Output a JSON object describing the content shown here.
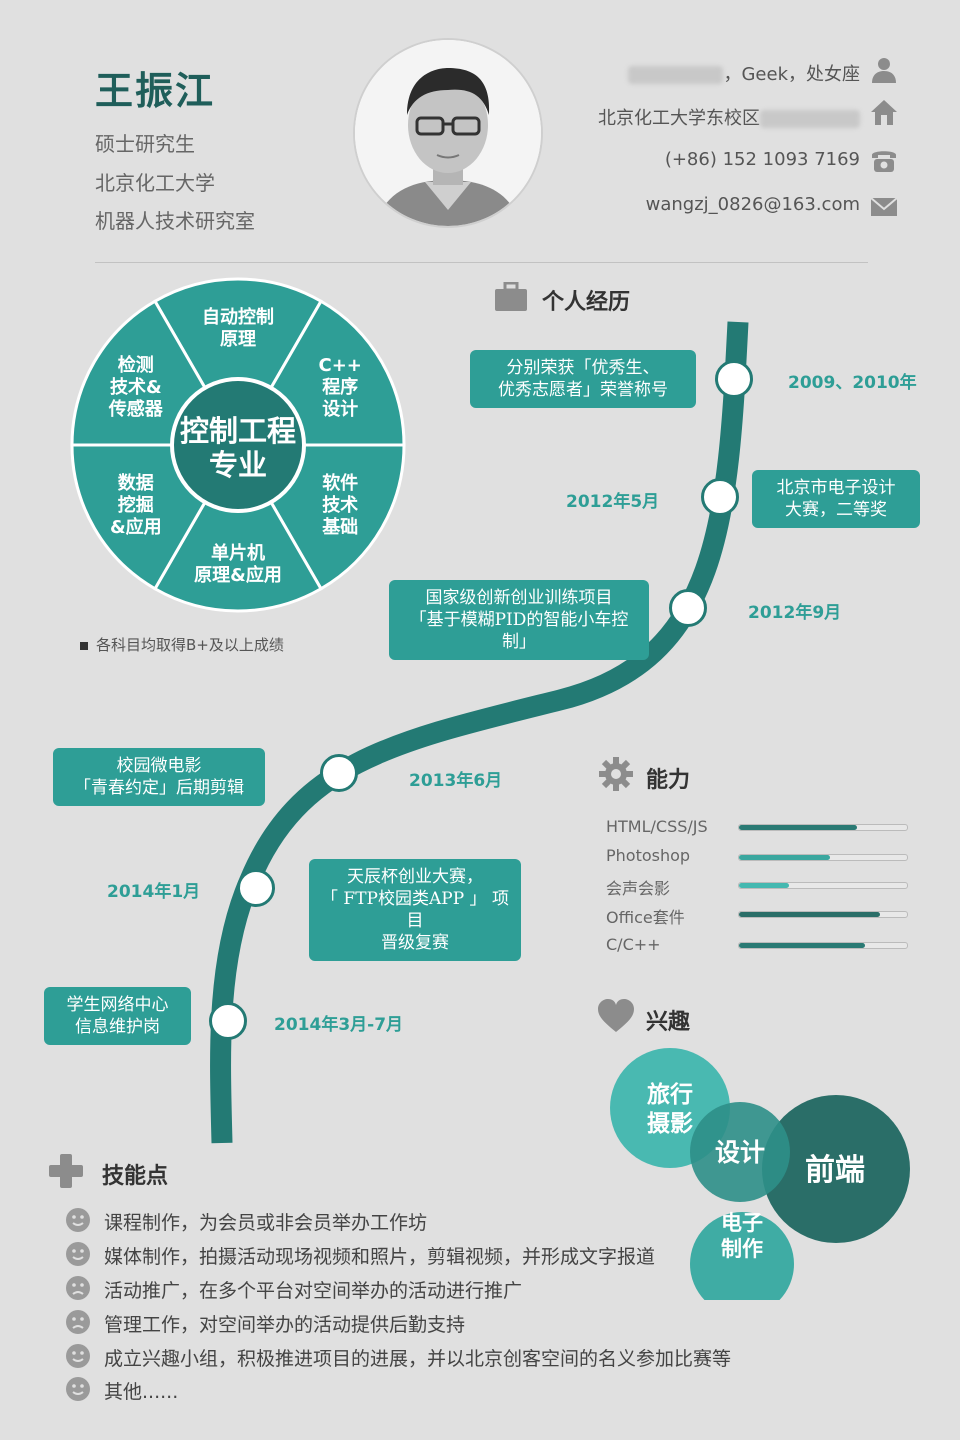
{
  "header": {
    "name": "王振江",
    "degree": "硕士研究生",
    "school": "北京化工大学",
    "lab": "机器人技术研究室",
    "contact": {
      "birth_suffix": "，Geek，处女座",
      "address": "北京化工大学东校区",
      "phone": "(+86) 152 1093 7169",
      "email": "wangzj_0826@163.com"
    }
  },
  "major": {
    "center": [
      "控制工程",
      "专业"
    ],
    "segments": [
      [
        "自动控制",
        "原理"
      ],
      [
        "C++",
        "程序",
        "设计"
      ],
      [
        "软件",
        "技术",
        "基础"
      ],
      [
        "单片机",
        "原理&应用"
      ],
      [
        "数据",
        "挖掘",
        "&应用"
      ],
      [
        "检测",
        "技术&",
        "传感器"
      ]
    ],
    "note": "各科目均取得B+及以上成绩",
    "colors": {
      "fill": "#2e9e96",
      "center": "#237a74",
      "border": "#ffffff"
    }
  },
  "experience": {
    "title": "个人经历",
    "items": [
      {
        "date": "2009、2010年",
        "text": [
          "分别荣获「优秀生、",
          "优秀志愿者」荣誉称号"
        ]
      },
      {
        "date": "2012年5月",
        "text": [
          "北京市电子设计",
          "大赛，二等奖"
        ]
      },
      {
        "date": "2012年9月",
        "text": [
          "国家级创新创业训练项目",
          "「基于模糊PID的智能小车控制」"
        ]
      },
      {
        "date": "2013年6月",
        "text": [
          "校园微电影",
          "「青春约定」后期剪辑"
        ]
      },
      {
        "date": "2014年1月",
        "text": [
          "天辰杯创业大赛，",
          "「 FTP校园类APP 」 项目",
          "晋级复赛"
        ]
      },
      {
        "date": "2014年3月-7月",
        "text": [
          "学生网络中心",
          "信息维护岗"
        ]
      }
    ]
  },
  "abilities": {
    "title": "能力",
    "items": [
      {
        "label": "HTML/CSS/JS",
        "level": 0.7,
        "color": "#2a7a74"
      },
      {
        "label": "Photoshop",
        "level": 0.54,
        "color": "#3aa79f"
      },
      {
        "label": "会声会影",
        "level": 0.3,
        "color": "#44b8b0"
      },
      {
        "label": "Office套件",
        "level": 0.84,
        "color": "#2a6e68"
      },
      {
        "label": "C/C++",
        "level": 0.75,
        "color": "#2a7a74"
      }
    ]
  },
  "interests": {
    "title": "兴趣",
    "items": [
      {
        "label": [
          "旅行",
          "摄影"
        ],
        "color": "#44b8b0"
      },
      {
        "label": [
          "设计"
        ],
        "color": "#2e8f88"
      },
      {
        "label": [
          "前端"
        ],
        "color": "#2a6e68"
      },
      {
        "label": [
          "电子",
          "制作"
        ],
        "color": "#36a9a0"
      }
    ]
  },
  "skills": {
    "title": "技能点",
    "items": [
      "课程制作，为会员或非会员举办工作坊",
      "媒体制作，拍摄活动现场视频和照片，剪辑视频，并形成文字报道",
      "活动推广，在多个平台对空间举办的活动进行推广",
      "管理工作，对空间举办的活动提供后勤支持",
      "成立兴趣小组，积极推进项目的进展，并以北京创客空间的名义参加比赛等",
      "其他......"
    ]
  }
}
